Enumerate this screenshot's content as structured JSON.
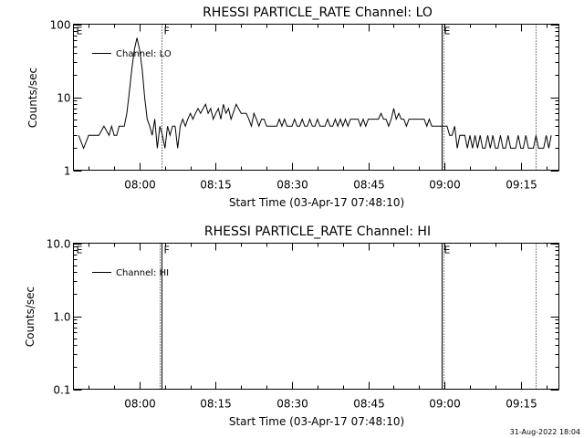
{
  "footer": {
    "timestamp": "31-Aug-2022 18:04"
  },
  "chart_data": [
    {
      "type": "line",
      "title": "RHESSI PARTICLE_RATE Channel: LO",
      "xlabel": "Start Time (03-Apr-17 07:48:10)",
      "ylabel": "Counts/sec",
      "yscale": "log",
      "ylim": [
        1,
        100
      ],
      "yticks": [
        1,
        10,
        100
      ],
      "ytick_labels": [
        "1",
        "10",
        "100"
      ],
      "xlim_minutes": [
        -1.0,
        94.5
      ],
      "xticks_minutes": [
        12,
        27,
        42,
        57,
        72,
        87
      ],
      "xtick_labels": [
        "08:00",
        "08:15",
        "08:30",
        "08:45",
        "09:00",
        "09:15"
      ],
      "legend": {
        "label": "Channel: LO",
        "position": "top-left"
      },
      "markers": [
        {
          "label": "E",
          "minute": -1.0,
          "style": "edge"
        },
        {
          "label": "F",
          "minute": 16.4,
          "style": "dotted"
        },
        {
          "label": "E",
          "minute": 71.4,
          "style": "solid"
        },
        {
          "label": "",
          "minute": 71.8,
          "style": "dotted"
        },
        {
          "label": "",
          "minute": 90.0,
          "style": "dotted"
        }
      ],
      "series": [
        {
          "name": "Channel: LO",
          "x": [
            0,
            1,
            2,
            3,
            4,
            5,
            6,
            6.5,
            7,
            7.5,
            8,
            9,
            9.5,
            10,
            10.5,
            11,
            11.5,
            12,
            12.5,
            13,
            13.5,
            14,
            14.5,
            15,
            15.5,
            16,
            16.5,
            17,
            17.5,
            18,
            18.5,
            19,
            19.5,
            20,
            20.5,
            21,
            21.5,
            22,
            22.5,
            23,
            23.5,
            24,
            24.5,
            25,
            25.5,
            26,
            26.5,
            27,
            27.5,
            28,
            28.5,
            29,
            29.5,
            30,
            31,
            32,
            33,
            33.5,
            34,
            34.5,
            35,
            35.5,
            36,
            36.5,
            37,
            37.5,
            38,
            38.5,
            39,
            39.5,
            40,
            40.5,
            41,
            41.5,
            42,
            42.5,
            43,
            43.5,
            44,
            44.5,
            45,
            45.5,
            46,
            46.5,
            47,
            47.5,
            48,
            48.5,
            49,
            49.5,
            50,
            50.5,
            51,
            51.5,
            52,
            52.5,
            53,
            53.5,
            54,
            54.5,
            55,
            55.5,
            56,
            56.5,
            57,
            57.5,
            58,
            58.5,
            59,
            59.5,
            60,
            60.5,
            61,
            61.5,
            62,
            62.5,
            63,
            63.5,
            64,
            64.5,
            65,
            65.5,
            66,
            66.5,
            67,
            67.5,
            68,
            68.5,
            69,
            69.5,
            70,
            70.5,
            71,
            72,
            72.5,
            73,
            73.5,
            74,
            74.5,
            75,
            75.5,
            76,
            76.5,
            77,
            77.5,
            78,
            78.5,
            79,
            79.5,
            80,
            80.5,
            81,
            81.5,
            82,
            82.5,
            83,
            83.5,
            84,
            84.5,
            85,
            85.5,
            86,
            86.5,
            87,
            87.5,
            88,
            88.5,
            89,
            89.5,
            90,
            90.5,
            91,
            91.5,
            92,
            92.5,
            93
          ],
          "values": [
            3,
            2,
            3,
            3,
            3,
            4,
            3,
            4,
            3,
            3,
            4,
            4,
            6,
            12,
            25,
            45,
            65,
            45,
            25,
            10,
            5,
            4,
            3,
            5,
            2,
            4,
            3,
            2,
            4,
            3,
            4,
            4,
            2,
            4,
            5,
            4,
            5,
            6,
            5,
            6,
            7,
            6,
            7,
            8,
            6,
            7,
            5,
            6,
            7,
            5,
            8,
            6,
            7,
            5,
            8,
            6,
            6,
            5,
            4,
            6,
            5,
            4,
            5,
            5,
            4,
            4,
            4,
            4,
            4,
            5,
            4,
            5,
            4,
            4,
            4,
            5,
            4,
            4,
            5,
            4,
            4,
            5,
            4,
            4,
            5,
            4,
            4,
            4,
            5,
            4,
            4,
            5,
            4,
            5,
            4,
            5,
            4,
            5,
            5,
            5,
            5,
            4,
            5,
            4,
            5,
            5,
            5,
            5,
            5,
            6,
            5,
            5,
            4,
            5,
            7,
            5,
            6,
            5,
            5,
            4,
            5,
            5,
            5,
            5,
            5,
            5,
            5,
            4,
            5,
            4,
            4,
            4,
            4,
            4,
            4,
            3,
            3,
            4,
            2,
            3,
            3,
            3,
            2,
            3,
            2,
            3,
            2,
            3,
            2,
            2,
            3,
            2,
            3,
            2,
            2,
            3,
            2,
            2,
            3,
            2,
            2,
            2,
            3,
            2,
            2,
            3,
            2,
            2,
            2,
            3,
            2,
            2,
            2,
            3,
            2,
            3
          ]
        }
      ]
    },
    {
      "type": "line",
      "title": "RHESSI PARTICLE_RATE Channel: HI",
      "xlabel": "Start Time (03-Apr-17 07:48:10)",
      "ylabel": "Counts/sec",
      "yscale": "log",
      "ylim": [
        0.1,
        10
      ],
      "yticks": [
        0.1,
        1,
        10
      ],
      "ytick_labels": [
        "0.1",
        "1.0",
        "10.0"
      ],
      "xlim_minutes": [
        -1.0,
        94.5
      ],
      "xticks_minutes": [
        12,
        27,
        42,
        57,
        72,
        87
      ],
      "xtick_labels": [
        "08:00",
        "08:15",
        "08:30",
        "08:45",
        "09:00",
        "09:15"
      ],
      "legend": {
        "label": "Channel: HI",
        "position": "top-left"
      },
      "markers": [
        {
          "label": "E",
          "minute": -1.0,
          "style": "edge"
        },
        {
          "label": "F",
          "minute": 16.4,
          "style": "solid-dotted"
        },
        {
          "label": "E",
          "minute": 71.4,
          "style": "solid"
        },
        {
          "label": "",
          "minute": 71.8,
          "style": "dotted"
        },
        {
          "label": "",
          "minute": 90.0,
          "style": "dotted"
        }
      ],
      "series": [
        {
          "name": "Channel: HI",
          "x": [],
          "values": []
        }
      ]
    }
  ]
}
